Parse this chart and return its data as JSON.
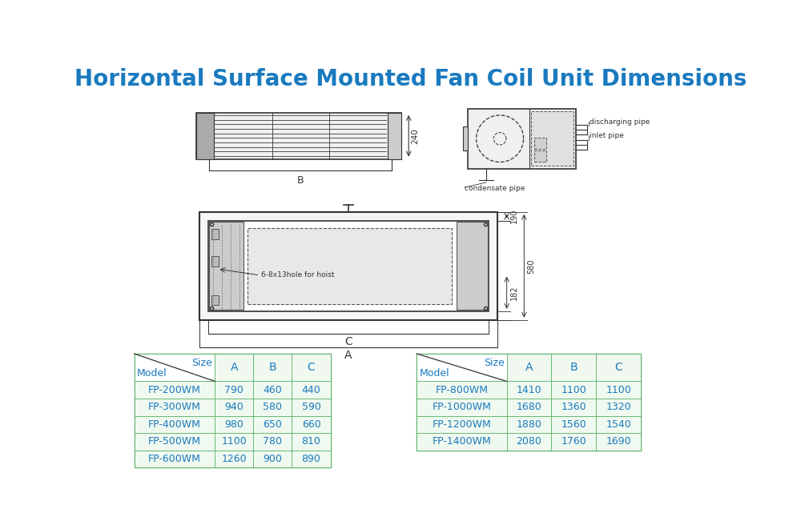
{
  "title": "Horizontal Surface Mounted Fan Coil Unit Dimensions",
  "title_color": "#1a7abf",
  "title_fontsize": 20,
  "bg_color": "#ffffff",
  "table1_header": [
    "",
    "A",
    "B",
    "C"
  ],
  "table1_col0_label_top": "Size",
  "table1_col0_label_bot": "Model",
  "table1_data": [
    [
      "FP-200WM",
      "790",
      "460",
      "440"
    ],
    [
      "FP-300WM",
      "940",
      "580",
      "590"
    ],
    [
      "FP-400WM",
      "980",
      "650",
      "660"
    ],
    [
      "FP-500WM",
      "1100",
      "780",
      "810"
    ],
    [
      "FP-600WM",
      "1260",
      "900",
      "890"
    ]
  ],
  "table2_header": [
    "",
    "A",
    "B",
    "C"
  ],
  "table2_col0_label_top": "Size",
  "table2_col0_label_bot": "Model",
  "table2_data": [
    [
      "FP-800WM",
      "1410",
      "1100",
      "1100"
    ],
    [
      "FP-1000WM",
      "1680",
      "1360",
      "1320"
    ],
    [
      "FP-1200WM",
      "1880",
      "1560",
      "1540"
    ],
    [
      "FP-1400WM",
      "2080",
      "1760",
      "1690"
    ]
  ],
  "table_text_color": "#1a7abf",
  "table_header_color": "#f0f8f0",
  "table_row_color": "#f0f9f0",
  "table_border_color": "#4aaa5a",
  "dim_240": "240",
  "dim_B": "B",
  "dim_190": "190",
  "dim_580": "580",
  "dim_182": "182",
  "dim_C": "C",
  "dim_A": "A",
  "label_hoist": "6-8x13hole for hoist",
  "label_discharging": "discharging pipe",
  "label_inlet": "inlet pipe",
  "label_condensate": "condensate pipe"
}
